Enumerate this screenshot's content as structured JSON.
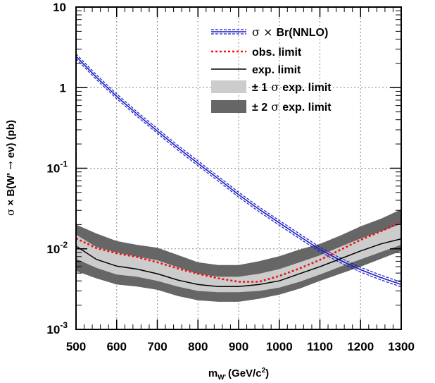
{
  "chart_data": {
    "type": "line",
    "x_axis": {
      "label_main": "m",
      "label_sub": "W'",
      "label_unit": "(GeV/c",
      "label_sup": "2",
      "label_close": ")",
      "range": [
        500,
        1300
      ],
      "ticks": [
        {
          "value": 500,
          "label": "500"
        },
        {
          "value": 600,
          "label": "600"
        },
        {
          "value": 700,
          "label": "700"
        },
        {
          "value": 800,
          "label": "800"
        },
        {
          "value": 900,
          "label": "900"
        },
        {
          "value": 1000,
          "label": "1000"
        },
        {
          "value": 1100,
          "label": "1100"
        },
        {
          "value": 1200,
          "label": "1200"
        },
        {
          "value": 1300,
          "label": "1300"
        }
      ]
    },
    "y_axis": {
      "label_a": "σ",
      "label_b": " × B(W' ",
      "label_c": "→",
      "label_d": " eν) (pb)",
      "scale": "log",
      "range": [
        0.001,
        10
      ],
      "ticks": [
        {
          "value": 10,
          "base": "10",
          "exp": ""
        },
        {
          "value": 1,
          "base": "1",
          "exp": ""
        },
        {
          "value": 0.1,
          "base": "10",
          "exp": "-1"
        },
        {
          "value": 0.01,
          "base": "10",
          "exp": "-2"
        },
        {
          "value": 0.001,
          "base": "10",
          "exp": "-3"
        }
      ]
    },
    "grid": true,
    "legend_position": "top-right",
    "legend": [
      {
        "key": "theory",
        "sym": "σ",
        "mid": " × ",
        "rest": "Br(NNLO)"
      },
      {
        "key": "obs",
        "sym": "",
        "mid": "",
        "rest": "obs. limit"
      },
      {
        "key": "exp",
        "sym": "",
        "mid": "",
        "rest": "exp. limit"
      },
      {
        "key": "band1",
        "sym": "± 1",
        "mid": " σ ",
        "rest": "exp. limit"
      },
      {
        "key": "band2",
        "sym": "± 2",
        "mid": " σ ",
        "rest": "exp. limit"
      }
    ],
    "x": [
      500,
      550,
      600,
      650,
      700,
      750,
      800,
      850,
      900,
      950,
      1000,
      1050,
      1100,
      1150,
      1200,
      1250,
      1300
    ],
    "series": [
      {
        "key": "theory",
        "name": "σ × Br(NNLO)",
        "color": "#1a1acc",
        "values": [
          2.45,
          1.35,
          0.78,
          0.47,
          0.29,
          0.18,
          0.115,
          0.074,
          0.047,
          0.031,
          0.021,
          0.0143,
          0.0098,
          0.0072,
          0.0055,
          0.0044,
          0.0036
        ]
      },
      {
        "key": "obs",
        "name": "obs. limit",
        "color": "#ee1111",
        "values": [
          0.0135,
          0.0102,
          0.0088,
          0.0079,
          0.0068,
          0.0057,
          0.0049,
          0.0043,
          0.0039,
          0.0039,
          0.0046,
          0.0057,
          0.0073,
          0.0097,
          0.0129,
          0.0165,
          0.0213
        ]
      },
      {
        "key": "exp",
        "name": "exp. limit",
        "color": "#000000",
        "values": [
          0.0108,
          0.0074,
          0.0061,
          0.0056,
          0.0049,
          0.0041,
          0.0036,
          0.0034,
          0.0034,
          0.0036,
          0.004,
          0.0049,
          0.006,
          0.0075,
          0.0094,
          0.0115,
          0.0133
        ]
      }
    ],
    "bands": [
      {
        "key": "band2",
        "name": "± 2 σ exp. limit",
        "color": "#666666",
        "upper": [
          0.02,
          0.0155,
          0.0125,
          0.0112,
          0.0103,
          0.0084,
          0.0068,
          0.0063,
          0.0063,
          0.007,
          0.0081,
          0.0098,
          0.0115,
          0.0146,
          0.019,
          0.0236,
          0.0308
        ],
        "lower": [
          0.0053,
          0.0043,
          0.0036,
          0.0034,
          0.0031,
          0.0026,
          0.0023,
          0.0022,
          0.0022,
          0.0024,
          0.0027,
          0.0032,
          0.004,
          0.0049,
          0.006,
          0.0075,
          0.0094
        ]
      },
      {
        "key": "band1",
        "name": "± 1 σ exp. limit",
        "color": "#cccccc",
        "upper": [
          0.015,
          0.0105,
          0.009,
          0.008,
          0.0072,
          0.0059,
          0.0049,
          0.0045,
          0.0045,
          0.0049,
          0.0056,
          0.0068,
          0.0083,
          0.0106,
          0.0134,
          0.0165,
          0.0204
        ],
        "lower": [
          0.0075,
          0.0058,
          0.0048,
          0.0045,
          0.004,
          0.0034,
          0.003,
          0.0029,
          0.0029,
          0.003,
          0.0033,
          0.0039,
          0.0048,
          0.006,
          0.0074,
          0.0091,
          0.0112
        ]
      }
    ]
  }
}
